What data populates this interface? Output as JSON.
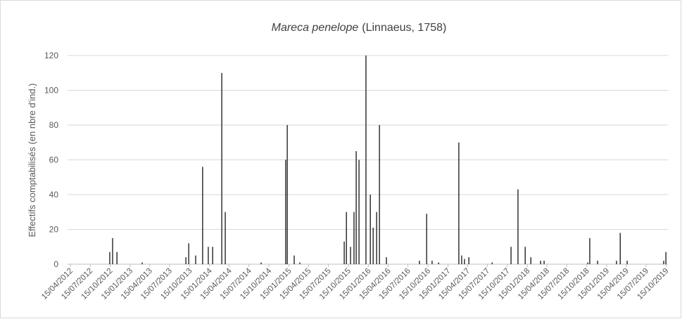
{
  "chart_data": {
    "type": "bar",
    "title": [
      "Mareca penelope",
      "(Linnaeus, 1758)"
    ],
    "ylabel": "Effectifs comptabilisés  (en nbre d'ind.)",
    "color": "#000000",
    "grid": true,
    "ylim": [
      0,
      120
    ],
    "yticks": [
      0,
      20,
      40,
      60,
      80,
      100,
      120
    ],
    "xlim": [
      "01/04/2012",
      "25/10/2019"
    ],
    "xticks": [
      "15/04/2012",
      "15/07/2012",
      "15/10/2012",
      "15/01/2013",
      "15/04/2013",
      "15/07/2013",
      "15/10/2013",
      "15/01/2014",
      "15/04/2014",
      "15/07/2014",
      "15/10/2014",
      "15/01/2015",
      "15/04/2015",
      "15/07/2015",
      "15/10/2015",
      "15/01/2016",
      "15/04/2016",
      "15/07/2016",
      "15/10/2016",
      "15/01/2017",
      "15/04/2017",
      "15/07/2017",
      "15/10/2017",
      "15/01/2018",
      "15/04/2018",
      "15/07/2018",
      "15/10/2018",
      "15/01/2019",
      "15/04/2019",
      "15/07/2019",
      "15/10/2019"
    ],
    "x": [
      "13/10/2012",
      "26/10/2012",
      "15/11/2012",
      "11/03/2013",
      "28/09/2013",
      "11/10/2013",
      "12/11/2013",
      "14/12/2013",
      "09/01/2014",
      "29/01/2014",
      "12/03/2014",
      "28/03/2014",
      "09/09/2014",
      "31/12/2014",
      "07/01/2015",
      "08/02/2015",
      "06/03/2015",
      "26/09/2015",
      "06/10/2015",
      "25/10/2015",
      "10/11/2015",
      "20/11/2015",
      "03/12/2015",
      "04/01/2016",
      "24/01/2016",
      "06/02/2016",
      "22/02/2016",
      "06/03/2016",
      "07/04/2016",
      "06/09/2016",
      "09/10/2016",
      "03/11/2016",
      "03/12/2016",
      "06/03/2017",
      "19/03/2017",
      "01/04/2017",
      "21/04/2017",
      "06/08/2017",
      "01/11/2017",
      "03/12/2017",
      "05/01/2018",
      "31/01/2018",
      "17/03/2018",
      "02/04/2018",
      "20/10/2018",
      "29/10/2018",
      "04/12/2018",
      "01/03/2019",
      "18/03/2019",
      "19/04/2019",
      "04/10/2019",
      "14/10/2019"
    ],
    "values": [
      7,
      15,
      7,
      1,
      4,
      12,
      5,
      56,
      10,
      10,
      110,
      30,
      1,
      60,
      80,
      5,
      1,
      13,
      30,
      10,
      30,
      65,
      60,
      120,
      40,
      21,
      30,
      80,
      4,
      2,
      29,
      2,
      1,
      70,
      5,
      3,
      4,
      1,
      10,
      43,
      10,
      4,
      2,
      2,
      1,
      15,
      2,
      2,
      18,
      2,
      2,
      7
    ]
  }
}
